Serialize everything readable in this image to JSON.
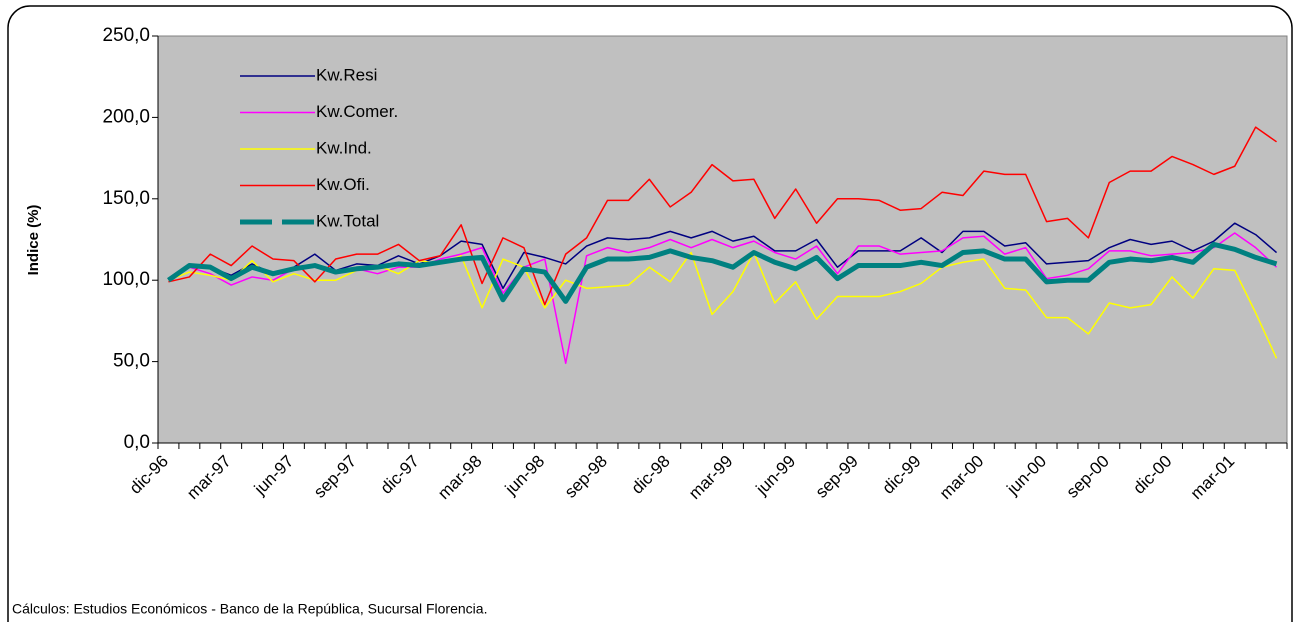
{
  "chart_data": {
    "type": "line",
    "ylabel": "Indice (%)",
    "footnote": "Cálculos:  Estudios Económicos - Banco de la República, Sucursal Florencia.",
    "categories": [
      "dic-96",
      null,
      null,
      "mar-97",
      null,
      null,
      "jun-97",
      null,
      null,
      "sep-97",
      null,
      null,
      "dic-97",
      null,
      null,
      "mar-98",
      null,
      null,
      "jun-98",
      null,
      null,
      "sep-98",
      null,
      null,
      "dic-98",
      null,
      null,
      "mar-99",
      null,
      null,
      "jun-99",
      null,
      null,
      "sep-99",
      null,
      null,
      "dic-99",
      null,
      null,
      "mar-00",
      null,
      null,
      "jun-00",
      null,
      null,
      "sep-00",
      null,
      null,
      "dic-00",
      null,
      null,
      "mar-01",
      null,
      null
    ],
    "series": [
      {
        "name": "Kw.Resi",
        "color": "#000080",
        "values": [
          100,
          108,
          108,
          103,
          110,
          104,
          108,
          116,
          106,
          110,
          109,
          115,
          110,
          115,
          124,
          122,
          95,
          117,
          114,
          110,
          121,
          126,
          125,
          126,
          130,
          126,
          130,
          124,
          127,
          118,
          118,
          125,
          108,
          118,
          118,
          118,
          126,
          117,
          130,
          130,
          121,
          123,
          110,
          111,
          112,
          120,
          125,
          122,
          124,
          118,
          124,
          135,
          128,
          117
        ]
      },
      {
        "name": "Kw.Comer.",
        "color": "#ff00ff",
        "values": [
          100,
          108,
          104,
          97,
          102,
          100,
          107,
          108,
          104,
          107,
          104,
          108,
          108,
          113,
          116,
          120,
          92,
          108,
          113,
          49,
          115,
          120,
          117,
          120,
          125,
          120,
          125,
          120,
          124,
          117,
          113,
          121,
          104,
          121,
          121,
          116,
          117,
          118,
          126,
          127,
          116,
          120,
          101,
          103,
          107,
          118,
          118,
          115,
          116,
          117,
          120,
          129,
          120,
          108
        ]
      },
      {
        "name": "Kw.Ind.",
        "color": "#ffff00",
        "values": [
          100,
          105,
          103,
          100,
          112,
          99,
          104,
          100,
          100,
          106,
          109,
          104,
          112,
          110,
          115,
          83,
          113,
          108,
          83,
          100,
          95,
          96,
          97,
          108,
          99,
          117,
          79,
          93,
          117,
          86,
          99,
          76,
          90,
          90,
          90,
          93,
          98,
          108,
          111,
          113,
          95,
          94,
          77,
          77,
          67,
          86,
          83,
          85,
          102,
          89,
          107,
          106,
          80,
          52
        ]
      },
      {
        "name": "Kw.Ofi.",
        "color": "#ff0000",
        "values": [
          99,
          102,
          116,
          109,
          121,
          113,
          112,
          99,
          113,
          116,
          116,
          122,
          112,
          115,
          134,
          98,
          126,
          120,
          85,
          116,
          126,
          149,
          149,
          162,
          145,
          154,
          171,
          161,
          162,
          138,
          156,
          135,
          150,
          150,
          149,
          143,
          144,
          154,
          152,
          167,
          165,
          165,
          136,
          138,
          126,
          160,
          167,
          167,
          176,
          171,
          165,
          170,
          194,
          185
        ]
      },
      {
        "name": "Kw.Total",
        "color": "#008080",
        "values": [
          100,
          109,
          108,
          101,
          108,
          104,
          107,
          109,
          105,
          107,
          108,
          110,
          109,
          111,
          113,
          114,
          88,
          107,
          105,
          87,
          108,
          113,
          113,
          114,
          118,
          114,
          112,
          108,
          117,
          111,
          107,
          114,
          101,
          109,
          109,
          109,
          111,
          109,
          117,
          118,
          113,
          113,
          99,
          100,
          100,
          111,
          113,
          112,
          114,
          111,
          122,
          119,
          114,
          110
        ]
      }
    ],
    "ylim": [
      0,
      250
    ],
    "yticks": [
      {
        "value": 0,
        "label": "0,0"
      },
      {
        "value": 50,
        "label": "50,0"
      },
      {
        "value": 100,
        "label": "100,0"
      },
      {
        "value": 150,
        "label": "150,0"
      },
      {
        "value": 200,
        "label": "200,0"
      },
      {
        "value": 250,
        "label": "250,0"
      }
    ],
    "legend": "upper left"
  }
}
